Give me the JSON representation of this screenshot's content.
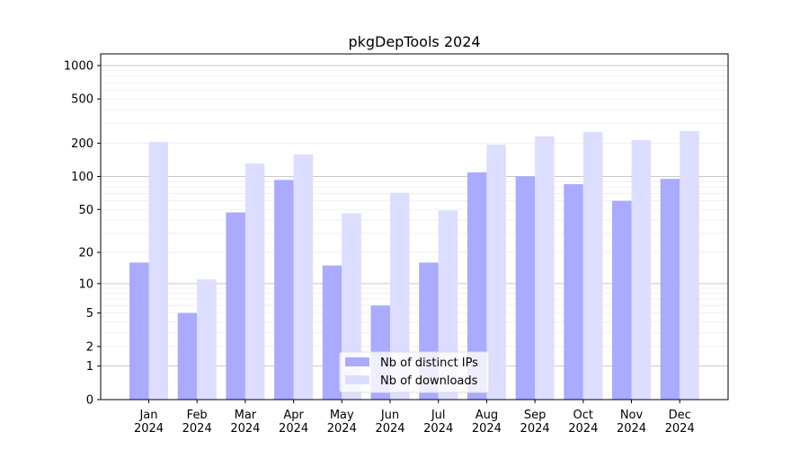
{
  "chart_data": {
    "type": "bar",
    "title": "pkgDepTools 2024",
    "xlabel": "",
    "ylabel": "",
    "yscale": "log(1+y)",
    "ylim": [
      0,
      1200
    ],
    "yticks": [
      0,
      1,
      2,
      5,
      10,
      20,
      50,
      100,
      200,
      500,
      1000
    ],
    "grid": true,
    "legend_position": "bottom-center",
    "categories": [
      "Jan\n2024",
      "Feb\n2024",
      "Mar\n2024",
      "Apr\n2024",
      "May\n2024",
      "Jun\n2024",
      "Jul\n2024",
      "Aug\n2024",
      "Sep\n2024",
      "Oct\n2024",
      "Nov\n2024",
      "Dec\n2024"
    ],
    "series": [
      {
        "name": "Nb of distinct IPs",
        "color": "#aaaaff",
        "values": [
          16,
          5,
          47,
          93,
          15,
          6,
          16,
          109,
          100,
          85,
          60,
          95
        ]
      },
      {
        "name": "Nb of downloads",
        "color": "#ddddff",
        "values": [
          205,
          11,
          131,
          158,
          46,
          71,
          49,
          194,
          230,
          252,
          213,
          257
        ]
      }
    ]
  }
}
